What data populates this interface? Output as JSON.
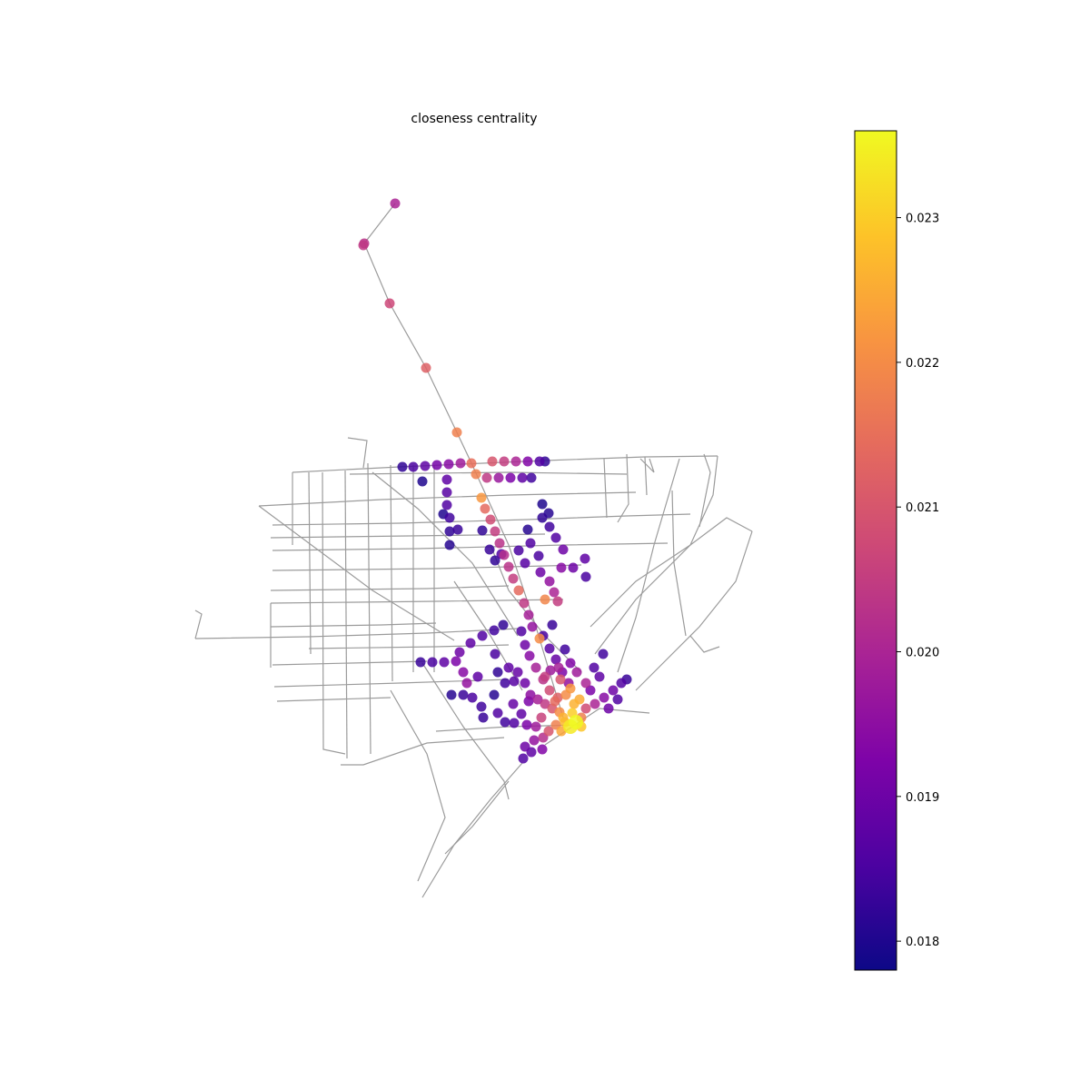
{
  "chart_data": {
    "type": "scatter",
    "title": "closeness centrality",
    "xlabel": "",
    "ylabel": "",
    "grid": false,
    "axes_visible": false,
    "colormap": "plasma",
    "colorbar": {
      "label": "",
      "range": [
        0.0178,
        0.0236
      ],
      "ticks": [
        0.018,
        0.019,
        0.02,
        0.021,
        0.022,
        0.023
      ],
      "tick_labels": [
        "0.018",
        "0.019",
        "0.020",
        "0.021",
        "0.022",
        "0.023"
      ]
    },
    "colors": {
      "edge": "#8a8a8a",
      "background": "#ffffff"
    },
    "series": [
      {
        "values": [
          [
            435,
            224,
            0.02
          ],
          [
            401,
            268,
            0.0203
          ],
          [
            400,
            270,
            0.0204
          ],
          [
            429,
            334,
            0.0207
          ],
          [
            469,
            405,
            0.0212
          ],
          [
            503,
            476,
            0.0218
          ],
          [
            443,
            514,
            0.0182
          ],
          [
            455,
            514,
            0.0185
          ],
          [
            468,
            513,
            0.0188
          ],
          [
            481,
            512,
            0.0191
          ],
          [
            494,
            511,
            0.0194
          ],
          [
            507,
            510,
            0.0198
          ],
          [
            519,
            510,
            0.0215
          ],
          [
            542,
            508,
            0.021
          ],
          [
            555,
            508,
            0.0205
          ],
          [
            568,
            508,
            0.02
          ],
          [
            581,
            508,
            0.0193
          ],
          [
            594,
            508,
            0.0186
          ],
          [
            600,
            508,
            0.0182
          ],
          [
            524,
            522,
            0.0218
          ],
          [
            536,
            526,
            0.0204
          ],
          [
            549,
            526,
            0.0197
          ],
          [
            562,
            526,
            0.0192
          ],
          [
            575,
            526,
            0.0188
          ],
          [
            585,
            526,
            0.0184
          ],
          [
            465,
            530,
            0.018
          ],
          [
            492,
            528,
            0.0188
          ],
          [
            492,
            542,
            0.0187
          ],
          [
            492,
            556,
            0.0186
          ],
          [
            495,
            570,
            0.0184
          ],
          [
            495,
            585,
            0.0182
          ],
          [
            495,
            600,
            0.0181
          ],
          [
            488,
            566,
            0.018
          ],
          [
            504,
            583,
            0.0183
          ],
          [
            531,
            584,
            0.0182
          ],
          [
            530,
            548,
            0.0222
          ],
          [
            534,
            560,
            0.0214
          ],
          [
            540,
            572,
            0.0208
          ],
          [
            545,
            585,
            0.0205
          ],
          [
            550,
            598,
            0.0203
          ],
          [
            555,
            611,
            0.0202
          ],
          [
            560,
            624,
            0.0203
          ],
          [
            565,
            637,
            0.0205
          ],
          [
            571,
            650,
            0.0214
          ],
          [
            577,
            664,
            0.0204
          ],
          [
            582,
            677,
            0.0199
          ],
          [
            586,
            690,
            0.0196
          ],
          [
            594,
            703,
            0.022
          ],
          [
            539,
            605,
            0.0183
          ],
          [
            545,
            617,
            0.0182
          ],
          [
            552,
            610,
            0.0186
          ],
          [
            571,
            606,
            0.0185
          ],
          [
            578,
            620,
            0.0187
          ],
          [
            584,
            598,
            0.0186
          ],
          [
            595,
            630,
            0.019
          ],
          [
            605,
            640,
            0.0196
          ],
          [
            614,
            662,
            0.0205
          ],
          [
            600,
            660,
            0.0219
          ],
          [
            610,
            652,
            0.02
          ],
          [
            618,
            625,
            0.0194
          ],
          [
            631,
            625,
            0.019
          ],
          [
            644,
            615,
            0.0188
          ],
          [
            645,
            635,
            0.0185
          ],
          [
            597,
            555,
            0.018
          ],
          [
            597,
            570,
            0.0182
          ],
          [
            605,
            580,
            0.0184
          ],
          [
            612,
            592,
            0.0186
          ],
          [
            620,
            605,
            0.019
          ],
          [
            604,
            565,
            0.0181
          ],
          [
            581,
            583,
            0.0181
          ],
          [
            593,
            612,
            0.0185
          ],
          [
            463,
            729,
            0.0183
          ],
          [
            476,
            729,
            0.0185
          ],
          [
            489,
            729,
            0.0188
          ],
          [
            502,
            728,
            0.0192
          ],
          [
            506,
            718,
            0.019
          ],
          [
            518,
            708,
            0.0188
          ],
          [
            531,
            700,
            0.0186
          ],
          [
            544,
            694,
            0.0184
          ],
          [
            554,
            688,
            0.0182
          ],
          [
            510,
            740,
            0.0194
          ],
          [
            514,
            752,
            0.0196
          ],
          [
            526,
            745,
            0.0188
          ],
          [
            497,
            765,
            0.0181
          ],
          [
            510,
            765,
            0.0183
          ],
          [
            520,
            768,
            0.0185
          ],
          [
            530,
            778,
            0.0184
          ],
          [
            532,
            790,
            0.0183
          ],
          [
            544,
            765,
            0.0181
          ],
          [
            548,
            740,
            0.0182
          ],
          [
            556,
            752,
            0.0184
          ],
          [
            574,
            695,
            0.0186
          ],
          [
            578,
            710,
            0.019
          ],
          [
            583,
            722,
            0.0194
          ],
          [
            590,
            735,
            0.0199
          ],
          [
            598,
            748,
            0.0203
          ],
          [
            605,
            760,
            0.0208
          ],
          [
            611,
            772,
            0.0214
          ],
          [
            616,
            784,
            0.022
          ],
          [
            622,
            795,
            0.0227
          ],
          [
            628,
            800,
            0.0234
          ],
          [
            598,
            700,
            0.0185
          ],
          [
            605,
            714,
            0.0187
          ],
          [
            612,
            726,
            0.0189
          ],
          [
            619,
            740,
            0.0192
          ],
          [
            626,
            752,
            0.0196
          ],
          [
            608,
            688,
            0.0183
          ],
          [
            622,
            715,
            0.0184
          ],
          [
            566,
            750,
            0.0187
          ],
          [
            578,
            752,
            0.019
          ],
          [
            584,
            765,
            0.0195
          ],
          [
            592,
            770,
            0.0199
          ],
          [
            600,
            775,
            0.0204
          ],
          [
            608,
            780,
            0.021
          ],
          [
            614,
            768,
            0.0212
          ],
          [
            623,
            765,
            0.022
          ],
          [
            632,
            775,
            0.0226
          ],
          [
            640,
            790,
            0.0218
          ],
          [
            630,
            785,
            0.023
          ],
          [
            620,
            790,
            0.0226
          ],
          [
            612,
            798,
            0.0218
          ],
          [
            604,
            805,
            0.021
          ],
          [
            618,
            805,
            0.0224
          ],
          [
            634,
            795,
            0.0236
          ],
          [
            640,
            800,
            0.0229
          ],
          [
            556,
            795,
            0.0184
          ],
          [
            566,
            796,
            0.0186
          ],
          [
            574,
            786,
            0.0188
          ],
          [
            580,
            798,
            0.0192
          ],
          [
            590,
            800,
            0.0198
          ],
          [
            598,
            812,
            0.0202
          ],
          [
            588,
            815,
            0.0196
          ],
          [
            578,
            822,
            0.019
          ],
          [
            576,
            835,
            0.0186
          ],
          [
            585,
            828,
            0.0188
          ],
          [
            597,
            825,
            0.0193
          ],
          [
            645,
            780,
            0.0208
          ],
          [
            655,
            775,
            0.02
          ],
          [
            665,
            768,
            0.0194
          ],
          [
            675,
            760,
            0.019
          ],
          [
            684,
            752,
            0.0186
          ],
          [
            690,
            748,
            0.0183
          ],
          [
            660,
            745,
            0.0188
          ],
          [
            654,
            735,
            0.0186
          ],
          [
            664,
            720,
            0.0184
          ],
          [
            650,
            760,
            0.0192
          ],
          [
            670,
            780,
            0.019
          ],
          [
            680,
            770,
            0.0186
          ],
          [
            545,
            720,
            0.0185
          ],
          [
            560,
            735,
            0.0188
          ],
          [
            570,
            740,
            0.0189
          ],
          [
            600,
            745,
            0.0205
          ],
          [
            596,
            790,
            0.0206
          ],
          [
            582,
            772,
            0.0192
          ],
          [
            565,
            775,
            0.0189
          ],
          [
            548,
            785,
            0.0186
          ],
          [
            606,
            738,
            0.0198
          ],
          [
            617,
            748,
            0.021
          ],
          [
            628,
            758,
            0.0222
          ],
          [
            638,
            770,
            0.0225
          ],
          [
            645,
            752,
            0.02
          ],
          [
            635,
            740,
            0.0198
          ],
          [
            628,
            730,
            0.0193
          ],
          [
            615,
            735,
            0.0199
          ]
        ]
      }
    ]
  }
}
